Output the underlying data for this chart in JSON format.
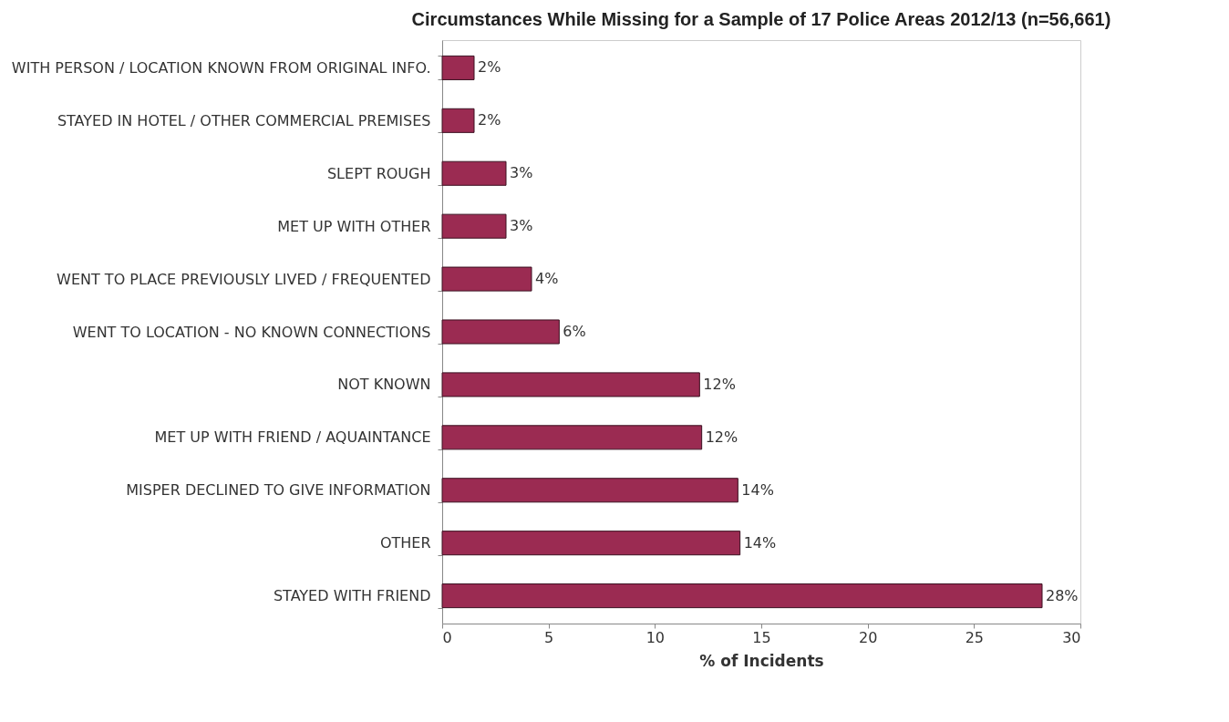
{
  "chart_data": {
    "type": "bar",
    "orientation": "horizontal",
    "title": "Circumstances While Missing for a Sample of 17 Police Areas 2012/13 (n=56,661)",
    "xlabel": "% of Incidents",
    "categories": [
      "WITH PERSON / LOCATION KNOWN FROM ORIGINAL INFO.",
      "STAYED IN HOTEL / OTHER COMMERCIAL PREMISES",
      "SLEPT ROUGH",
      "MET UP WITH OTHER",
      "WENT TO PLACE PREVIOUSLY LIVED / FREQUENTED",
      "WENT TO LOCATION - NO KNOWN CONNECTIONS",
      "NOT KNOWN",
      "MET UP WITH FRIEND / AQUAINTANCE",
      "MISPER DECLINED TO GIVE INFORMATION",
      "OTHER",
      "STAYED WITH FRIEND"
    ],
    "values": [
      1.5,
      1.5,
      3.0,
      3.0,
      4.2,
      5.5,
      12.1,
      12.2,
      13.9,
      14.0,
      28.2
    ],
    "value_labels": [
      "2%",
      "2%",
      "3%",
      "3%",
      "4%",
      "6%",
      "12%",
      "12%",
      "14%",
      "14%",
      "28%"
    ],
    "color": "#9b2b52",
    "xlim": [
      0,
      30
    ],
    "xticks": [
      0,
      5,
      10,
      15,
      20,
      25,
      30
    ],
    "grid": false
  }
}
